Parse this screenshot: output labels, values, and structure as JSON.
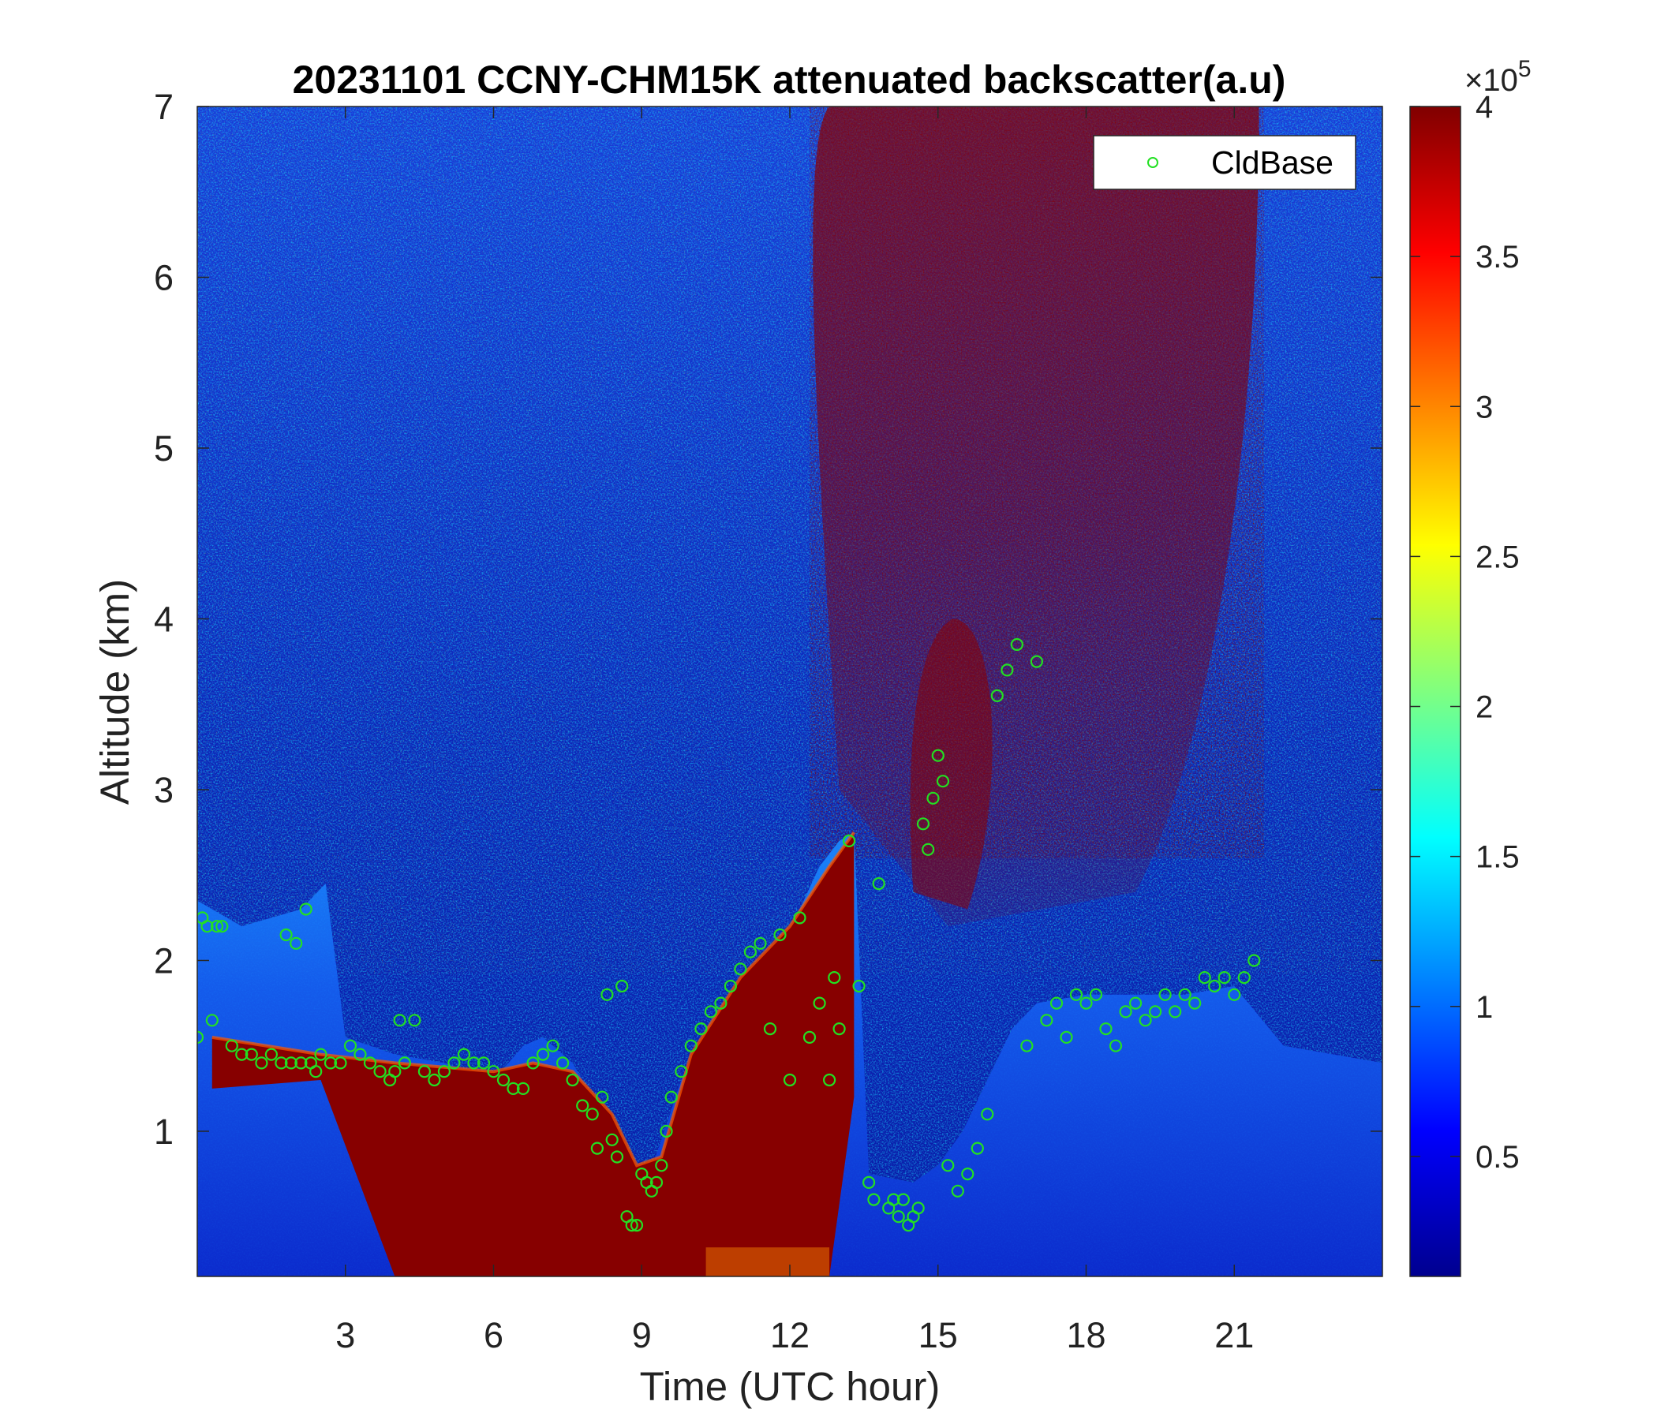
{
  "chart_data": {
    "type": "heatmap",
    "title": "20231101 CCNY-CHM15K attenuated backscatter(a.u)",
    "xlabel": "Time (UTC hour)",
    "ylabel": "Altitude (km)",
    "xlim": [
      0,
      24
    ],
    "ylim": [
      0.15,
      7
    ],
    "xticks": [
      3,
      6,
      9,
      12,
      15,
      18,
      21
    ],
    "xtick_labels": [
      "3",
      "6",
      "9",
      "12",
      "15",
      "18",
      "21"
    ],
    "yticks": [
      1,
      2,
      3,
      4,
      5,
      6,
      7
    ],
    "ytick_labels": [
      "1",
      "2",
      "3",
      "4",
      "5",
      "6",
      "7"
    ],
    "colorbar": {
      "colormap": "jet",
      "range": [
        10000,
        400000
      ],
      "ticks": [
        50000,
        100000,
        150000,
        200000,
        250000,
        300000,
        350000,
        400000
      ],
      "tick_labels": [
        "0.5",
        "1",
        "1.5",
        "2",
        "2.5",
        "3",
        "3.5",
        "4"
      ],
      "exponent_label": "×10",
      "exponent": "5"
    },
    "legend": {
      "position": "top-right",
      "entries": [
        {
          "name": "CldBase",
          "marker": "circle",
          "color": "#22e022"
        }
      ]
    },
    "grid": false,
    "boundary_layer_top_km": {
      "x": [
        0,
        0.3,
        0.9,
        1.5,
        2.1,
        2.6,
        3.0,
        4.0,
        5.0,
        6.0,
        6.6,
        7.0,
        7.6,
        8.0,
        8.4,
        8.8,
        9.1,
        9.4,
        9.8,
        10.3,
        10.8,
        11.3,
        11.8,
        12.2,
        12.6,
        13.0,
        13.3,
        13.6,
        14.5,
        15.0,
        15.5,
        16.0,
        16.5,
        17.0,
        18.0,
        19.0,
        20.0,
        21.0,
        22.0,
        24.0
      ],
      "y": [
        2.35,
        2.3,
        2.2,
        2.25,
        2.3,
        2.45,
        1.55,
        1.45,
        1.4,
        1.3,
        1.5,
        1.55,
        1.4,
        1.2,
        0.9,
        0.75,
        0.7,
        0.95,
        1.3,
        1.6,
        1.8,
        1.95,
        2.1,
        2.3,
        2.55,
        2.7,
        2.75,
        0.75,
        0.7,
        0.8,
        1.0,
        1.3,
        1.6,
        1.75,
        1.8,
        1.8,
        1.8,
        1.85,
        1.5,
        1.4
      ]
    },
    "saturated_layer_km": {
      "x": [
        0.3,
        2.5,
        4.0,
        6.0,
        6.8,
        7.6,
        8.4,
        8.9,
        9.4,
        10.0,
        11.0,
        12.0,
        12.8,
        13.3
      ],
      "top": [
        1.55,
        1.45,
        1.4,
        1.35,
        1.4,
        1.35,
        1.1,
        0.8,
        0.85,
        1.45,
        1.9,
        2.2,
        2.55,
        2.75
      ],
      "bottom": [
        1.25,
        1.3,
        0.15,
        0.15,
        0.15,
        0.15,
        0.15,
        0.15,
        0.15,
        0.15,
        0.15,
        0.15,
        0.15,
        1.2
      ]
    },
    "cloud_base_km": {
      "x": [
        0.0,
        0.1,
        0.2,
        0.3,
        0.4,
        0.5,
        0.7,
        0.9,
        1.1,
        1.3,
        1.5,
        1.7,
        1.8,
        1.9,
        2.0,
        2.1,
        2.2,
        2.3,
        2.4,
        2.5,
        2.7,
        2.9,
        3.1,
        3.3,
        3.5,
        3.7,
        3.9,
        4.0,
        4.1,
        4.2,
        4.4,
        4.6,
        4.8,
        5.0,
        5.2,
        5.4,
        5.6,
        5.8,
        6.0,
        6.2,
        6.4,
        6.6,
        6.8,
        7.0,
        7.2,
        7.4,
        7.6,
        7.8,
        8.0,
        8.1,
        8.2,
        8.3,
        8.4,
        8.5,
        8.6,
        8.7,
        8.8,
        8.9,
        9.0,
        9.1,
        9.2,
        9.3,
        9.4,
        9.5,
        9.6,
        9.8,
        10.0,
        10.2,
        10.4,
        10.6,
        10.8,
        11.0,
        11.2,
        11.4,
        11.6,
        11.8,
        12.0,
        12.2,
        12.4,
        12.6,
        12.8,
        12.9,
        13.0,
        13.2,
        13.4,
        13.6,
        13.7,
        13.8,
        14.0,
        14.1,
        14.2,
        14.3,
        14.4,
        14.5,
        14.6,
        14.7,
        14.8,
        14.9,
        15.0,
        15.1,
        15.2,
        15.4,
        15.6,
        15.8,
        16.0,
        16.2,
        16.4,
        16.6,
        16.8,
        17.0,
        17.2,
        17.4,
        17.6,
        17.8,
        18.0,
        18.2,
        18.4,
        18.6,
        18.8,
        19.0,
        19.2,
        19.4,
        19.6,
        19.8,
        20.0,
        20.2,
        20.4,
        20.6,
        20.8,
        21.0,
        21.2,
        21.4
      ],
      "y": [
        1.55,
        2.25,
        2.2,
        1.65,
        2.2,
        2.2,
        1.5,
        1.45,
        1.45,
        1.4,
        1.45,
        1.4,
        2.15,
        1.4,
        2.1,
        1.4,
        2.3,
        1.4,
        1.35,
        1.45,
        1.4,
        1.4,
        1.5,
        1.45,
        1.4,
        1.35,
        1.3,
        1.35,
        1.65,
        1.4,
        1.65,
        1.35,
        1.3,
        1.35,
        1.4,
        1.45,
        1.4,
        1.4,
        1.35,
        1.3,
        1.25,
        1.25,
        1.4,
        1.45,
        1.5,
        1.4,
        1.3,
        1.15,
        1.1,
        0.9,
        1.2,
        1.8,
        0.95,
        0.85,
        1.85,
        0.5,
        0.45,
        0.45,
        0.75,
        0.7,
        0.65,
        0.7,
        0.8,
        1.0,
        1.2,
        1.35,
        1.5,
        1.6,
        1.7,
        1.75,
        1.85,
        1.95,
        2.05,
        2.1,
        1.6,
        2.15,
        1.3,
        2.25,
        1.55,
        1.75,
        1.3,
        1.9,
        1.6,
        2.7,
        1.85,
        0.7,
        0.6,
        2.45,
        0.55,
        0.6,
        0.5,
        0.6,
        0.45,
        0.5,
        0.55,
        2.8,
        2.65,
        2.95,
        3.2,
        3.05,
        0.8,
        0.65,
        0.75,
        0.9,
        1.1,
        3.55,
        3.7,
        3.85,
        1.5,
        3.75,
        1.65,
        1.75,
        1.55,
        1.8,
        1.75,
        1.8,
        1.6,
        1.5,
        1.7,
        1.75,
        1.65,
        1.7,
        1.8,
        1.7,
        1.8,
        1.75,
        1.9,
        1.85,
        1.9,
        1.8,
        1.9,
        2.0
      ]
    }
  }
}
